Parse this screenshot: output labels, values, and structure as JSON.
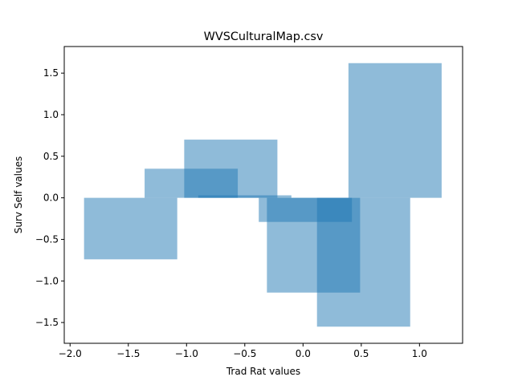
{
  "chart_data": {
    "type": "bar",
    "title": "WVSCulturalMap.csv",
    "xlabel": "Trad Rat values",
    "ylabel": "Surv Self values",
    "xlim": [
      -2.05,
      1.37
    ],
    "ylim": [
      -1.75,
      1.82
    ],
    "xticks": [
      -2.0,
      -1.5,
      -1.0,
      -0.5,
      0.0,
      0.5,
      1.0
    ],
    "xtick_labels": [
      "−2.0",
      "−1.5",
      "−1.0",
      "−0.5",
      "0.0",
      "0.5",
      "1.0"
    ],
    "yticks": [
      -1.5,
      -1.0,
      -0.5,
      0.0,
      0.5,
      1.0,
      1.5
    ],
    "ytick_labels": [
      "−1.5",
      "−1.0",
      "−0.5",
      "0.0",
      "0.5",
      "1.0",
      "1.5"
    ],
    "grid": false,
    "bar_color": "#1f77b4",
    "bar_alpha": 0.5,
    "bars": [
      {
        "x": -1.48,
        "width": 0.8,
        "y": -0.74
      },
      {
        "x": -0.96,
        "width": 0.8,
        "y": 0.35
      },
      {
        "x": -0.5,
        "width": 0.8,
        "y": 0.03
      },
      {
        "x": -0.62,
        "width": 0.8,
        "y": 0.7
      },
      {
        "x": 0.02,
        "width": 0.8,
        "y": -0.29
      },
      {
        "x": 0.09,
        "width": 0.8,
        "y": -1.14
      },
      {
        "x": 0.79,
        "width": 0.8,
        "y": 1.62
      },
      {
        "x": 0.52,
        "width": 0.8,
        "y": -1.55
      }
    ]
  }
}
